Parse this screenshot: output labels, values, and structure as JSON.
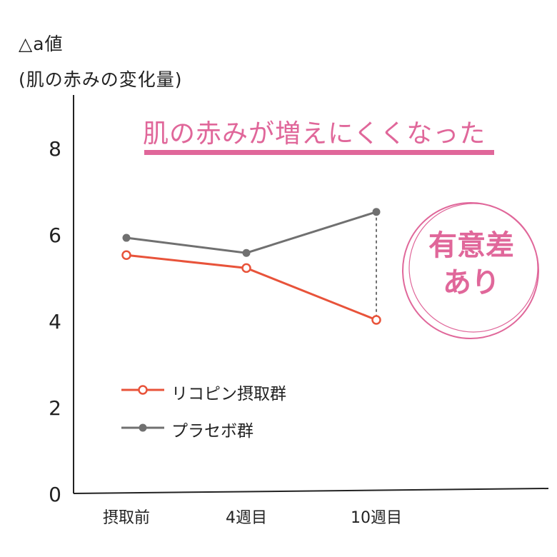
{
  "chart_data": {
    "type": "line",
    "ylabel": "△a値",
    "ylabel_sub": "(肌の赤みの変化量)",
    "categories": [
      "摂取前",
      "4週目",
      "10週目"
    ],
    "ylim": [
      0,
      9
    ],
    "yticks": [
      0,
      2,
      4,
      6,
      8
    ],
    "grid": false,
    "legend_placement": "lower-left",
    "series": [
      {
        "name": "リコピン摂取群",
        "values": [
          5.5,
          5.2,
          4.0
        ],
        "color": "#e8533a",
        "marker": "open-circle"
      },
      {
        "name": "プラセボ群",
        "values": [
          5.9,
          5.55,
          6.5
        ],
        "color": "#707070",
        "marker": "filled-circle"
      }
    ],
    "annotations": {
      "headline": "肌の赤みが増えにくくなった",
      "significance": [
        "有意差",
        "あり"
      ]
    },
    "colors": {
      "accent": "#e0679a",
      "axis": "#222222"
    }
  }
}
